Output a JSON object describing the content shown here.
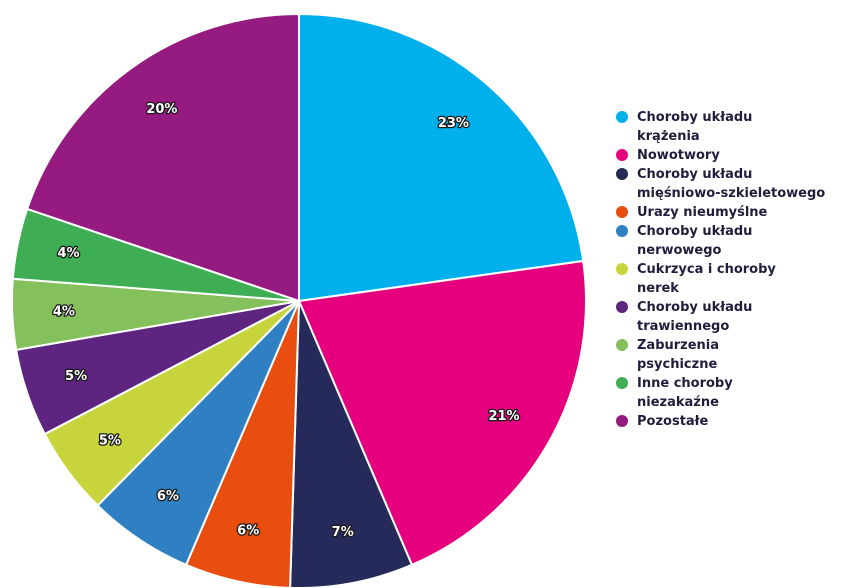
{
  "chart_data": {
    "type": "pie",
    "title": "",
    "legend_position": "right",
    "start_angle": "top",
    "direction": "clockwise",
    "slices": [
      {
        "name": "Choroby układu\nkrążenia",
        "value": 23,
        "label": "23%",
        "color": "#00b0ec"
      },
      {
        "name": "Nowotwory",
        "value": 21,
        "label": "21%",
        "color": "#e6007e"
      },
      {
        "name": "Choroby układu\nmięśniowo-szkieletowego",
        "value": 7,
        "label": "7%",
        "color": "#262a5a"
      },
      {
        "name": "Urazy nieumyślne",
        "value": 6,
        "label": "6%",
        "color": "#e84e0f"
      },
      {
        "name": "Choroby układu\nnerwowego",
        "value": 6,
        "label": "6%",
        "color": "#2f80c3"
      },
      {
        "name": "Cukrzyca i choroby\nnerek",
        "value": 5,
        "label": "5%",
        "color": "#c8d43b"
      },
      {
        "name": "Choroby układu\ntrawiennego",
        "value": 5,
        "label": "5%",
        "color": "#5e2580"
      },
      {
        "name": "Zaburzenia\npsychiczne",
        "value": 4,
        "label": "4%",
        "color": "#84c05c"
      },
      {
        "name": "Inne choroby\nniezakaźne",
        "value": 4,
        "label": "4%",
        "color": "#3fad54"
      },
      {
        "name": "Pozostałe",
        "value": 20,
        "label": "20%",
        "color": "#951b81"
      }
    ]
  }
}
